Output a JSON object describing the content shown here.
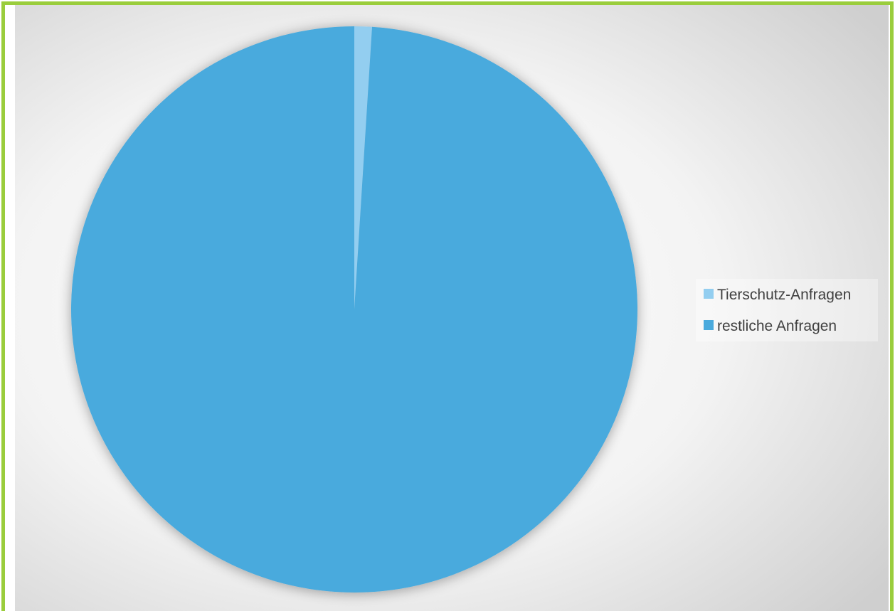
{
  "chart_data": {
    "type": "pie",
    "categories": [
      "Tierschutz-Anfragen",
      "restliche Anfragen"
    ],
    "values": [
      1,
      99
    ],
    "colors": [
      "#93CEF0",
      "#4AAADD"
    ],
    "legend_position": "right",
    "frame_color": "#9ACD3C",
    "background": "radial-gradient"
  }
}
